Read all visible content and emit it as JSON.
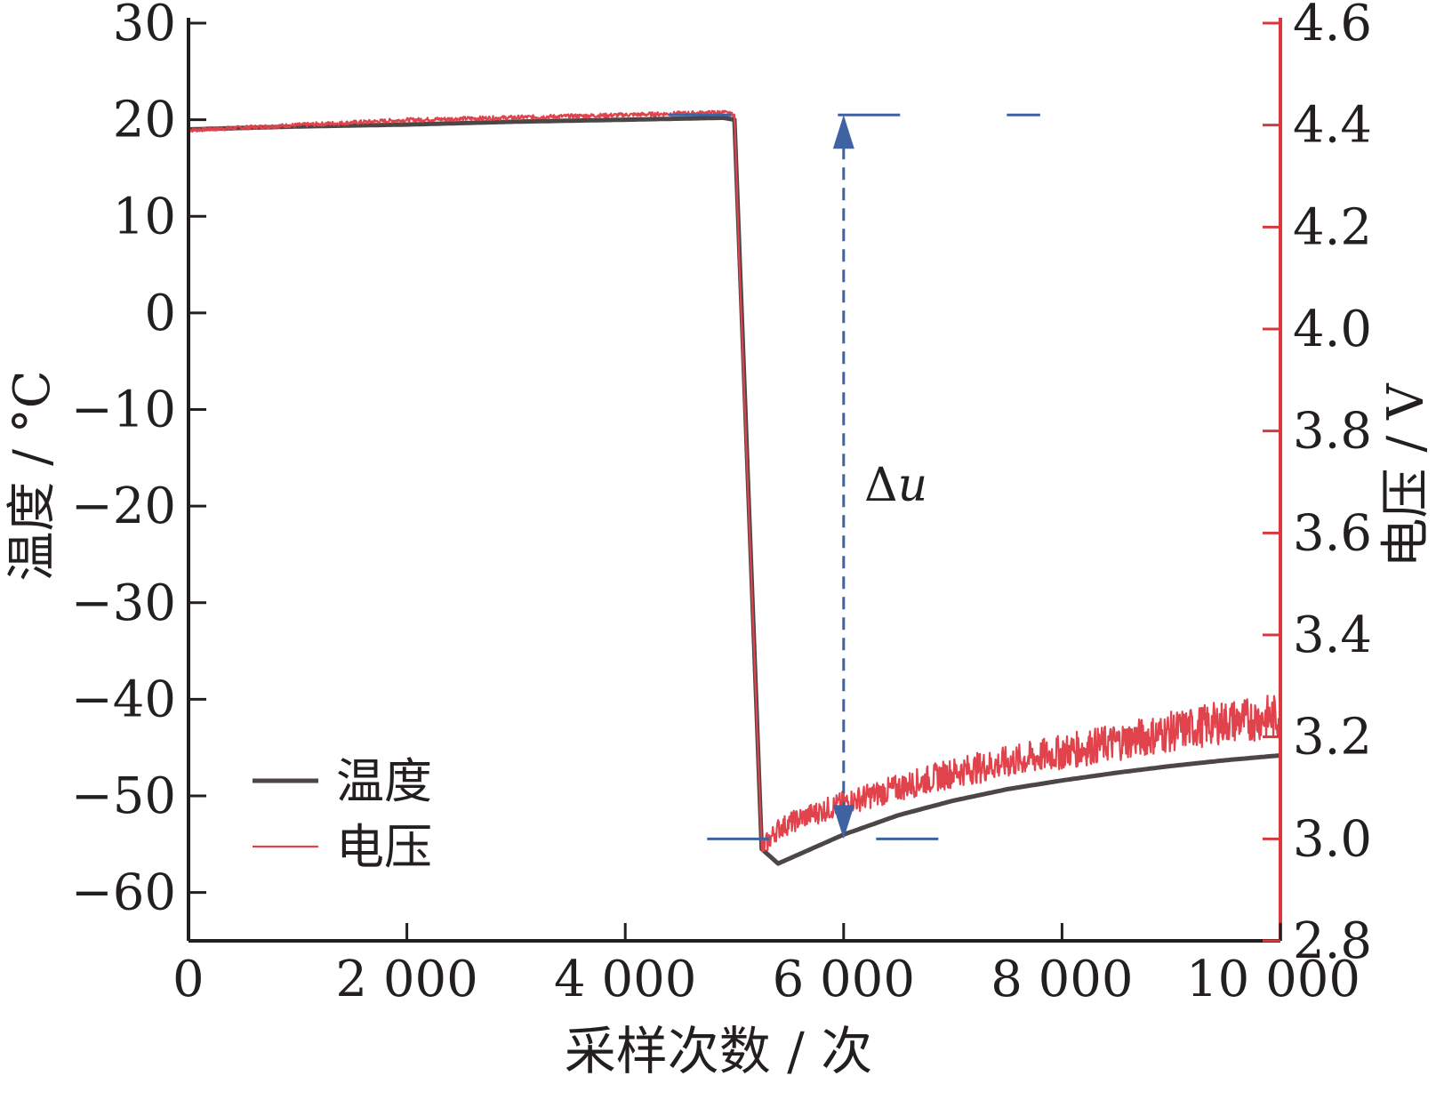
{
  "colors": {
    "temperature": "#4d4646",
    "voltage": "#e0434b",
    "annotation": "#3f62a3",
    "axis": "#231f20",
    "right_axis": "#d9383f"
  },
  "chart_data": {
    "type": "line",
    "xlabel": "采样次数 / 次",
    "ylabel_left": "温度 / °C",
    "ylabel_right": "电压 / V",
    "xlim": [
      0,
      10000
    ],
    "ylim_left": [
      -65,
      30
    ],
    "ylim_right": [
      2.8,
      4.6
    ],
    "x_ticks": [
      0,
      2000,
      4000,
      6000,
      8000,
      10000
    ],
    "x_tick_labels": [
      "0",
      "2 000",
      "4 000",
      "6 000",
      "8 000",
      "10 000"
    ],
    "y_left_ticks": [
      30,
      20,
      10,
      0,
      -10,
      -20,
      -30,
      -40,
      -50,
      -60
    ],
    "y_left_tick_labels": [
      "30",
      "20",
      "10",
      "0",
      "−10",
      "−20",
      "−30",
      "−40",
      "−50",
      "−60"
    ],
    "y_right_ticks": [
      4.6,
      4.4,
      4.2,
      4.0,
      3.8,
      3.6,
      3.4,
      3.2,
      3.0,
      2.8
    ],
    "y_right_tick_labels": [
      "4.6",
      "4.4",
      "4.2",
      "4.0",
      "3.8",
      "3.6",
      "3.4",
      "3.2",
      "3.0",
      "2.8"
    ],
    "grid": false,
    "legend_position": "bottom-left",
    "series": [
      {
        "name": "温度",
        "axis": "left",
        "x": [
          0,
          1000,
          2000,
          3000,
          4000,
          4900,
          5000,
          5050,
          5250,
          5400,
          5600,
          6000,
          6500,
          7000,
          7500,
          8000,
          8500,
          9000,
          9500,
          10000
        ],
        "y": [
          19,
          19.3,
          19.5,
          19.8,
          20,
          20.2,
          20,
          5,
          -55.5,
          -57,
          -56,
          -54,
          -52,
          -50.5,
          -49.3,
          -48.4,
          -47.6,
          -46.9,
          -46.3,
          -45.8
        ]
      },
      {
        "name": "电压",
        "axis": "right",
        "x": [
          0,
          1000,
          2000,
          3000,
          4000,
          4900,
          5000,
          5050,
          5250,
          5400,
          5600,
          6000,
          6500,
          7000,
          7500,
          8000,
          8500,
          9000,
          9500,
          10000
        ],
        "y": [
          4.39,
          4.4,
          4.41,
          4.415,
          4.42,
          4.425,
          4.42,
          4.1,
          2.98,
          3.02,
          3.04,
          3.07,
          3.1,
          3.13,
          3.15,
          3.17,
          3.19,
          3.21,
          3.23,
          3.24
        ]
      }
    ],
    "annotations": [
      {
        "text": "Δ",
        "italic_text": "u",
        "type": "double-arrow",
        "x": 6000,
        "from_voltage": 3.0,
        "to_voltage": 4.42
      }
    ]
  }
}
